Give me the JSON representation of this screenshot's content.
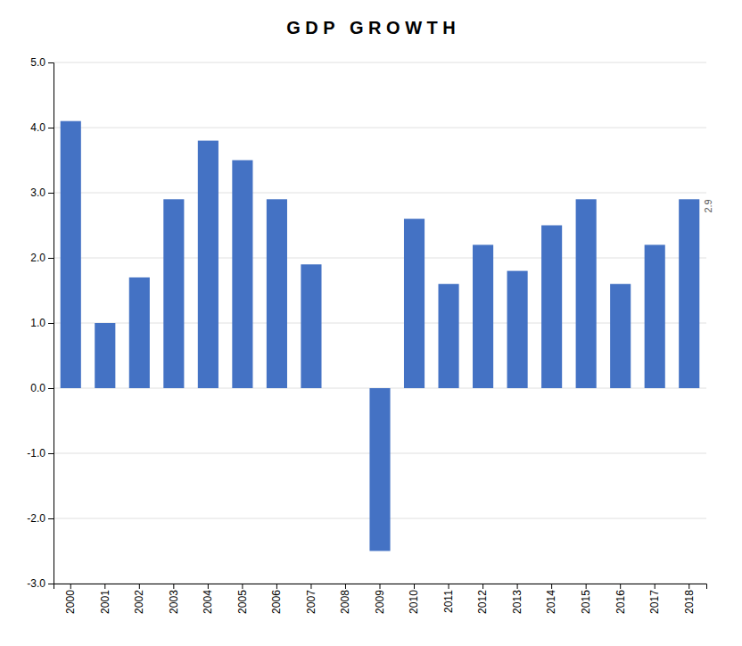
{
  "chart_data": {
    "type": "bar",
    "title": "G D P   G R O W T H",
    "categories": [
      "2000",
      "2001",
      "2002",
      "2003",
      "2004",
      "2005",
      "2006",
      "2007",
      "2008",
      "2009",
      "2010",
      "2011",
      "2012",
      "2013",
      "2014",
      "2015",
      "2016",
      "2017",
      "2018"
    ],
    "values": [
      4.1,
      1.0,
      1.7,
      2.9,
      3.8,
      3.5,
      2.9,
      1.9,
      0.0,
      -2.5,
      2.6,
      1.6,
      2.2,
      1.8,
      2.5,
      2.9,
      1.6,
      2.2,
      2.9
    ],
    "color": "#4472C4",
    "ylim": [
      -3.0,
      5.0
    ],
    "yticks": [
      {
        "value": -3.0,
        "label": "-3.0"
      },
      {
        "value": -2.0,
        "label": "-2.0"
      },
      {
        "value": -1.0,
        "label": "-1.0"
      },
      {
        "value": 0.0,
        "label": "0.0"
      },
      {
        "value": 1.0,
        "label": "1.0"
      },
      {
        "value": 2.0,
        "label": "2.0"
      },
      {
        "value": 3.0,
        "label": "3.0"
      },
      {
        "value": 4.0,
        "label": "4.0"
      },
      {
        "value": 5.0,
        "label": "5.0"
      }
    ],
    "grid": true,
    "annotations": [
      {
        "text": "2.9",
        "category": "2018",
        "value": 2.9
      }
    ]
  }
}
